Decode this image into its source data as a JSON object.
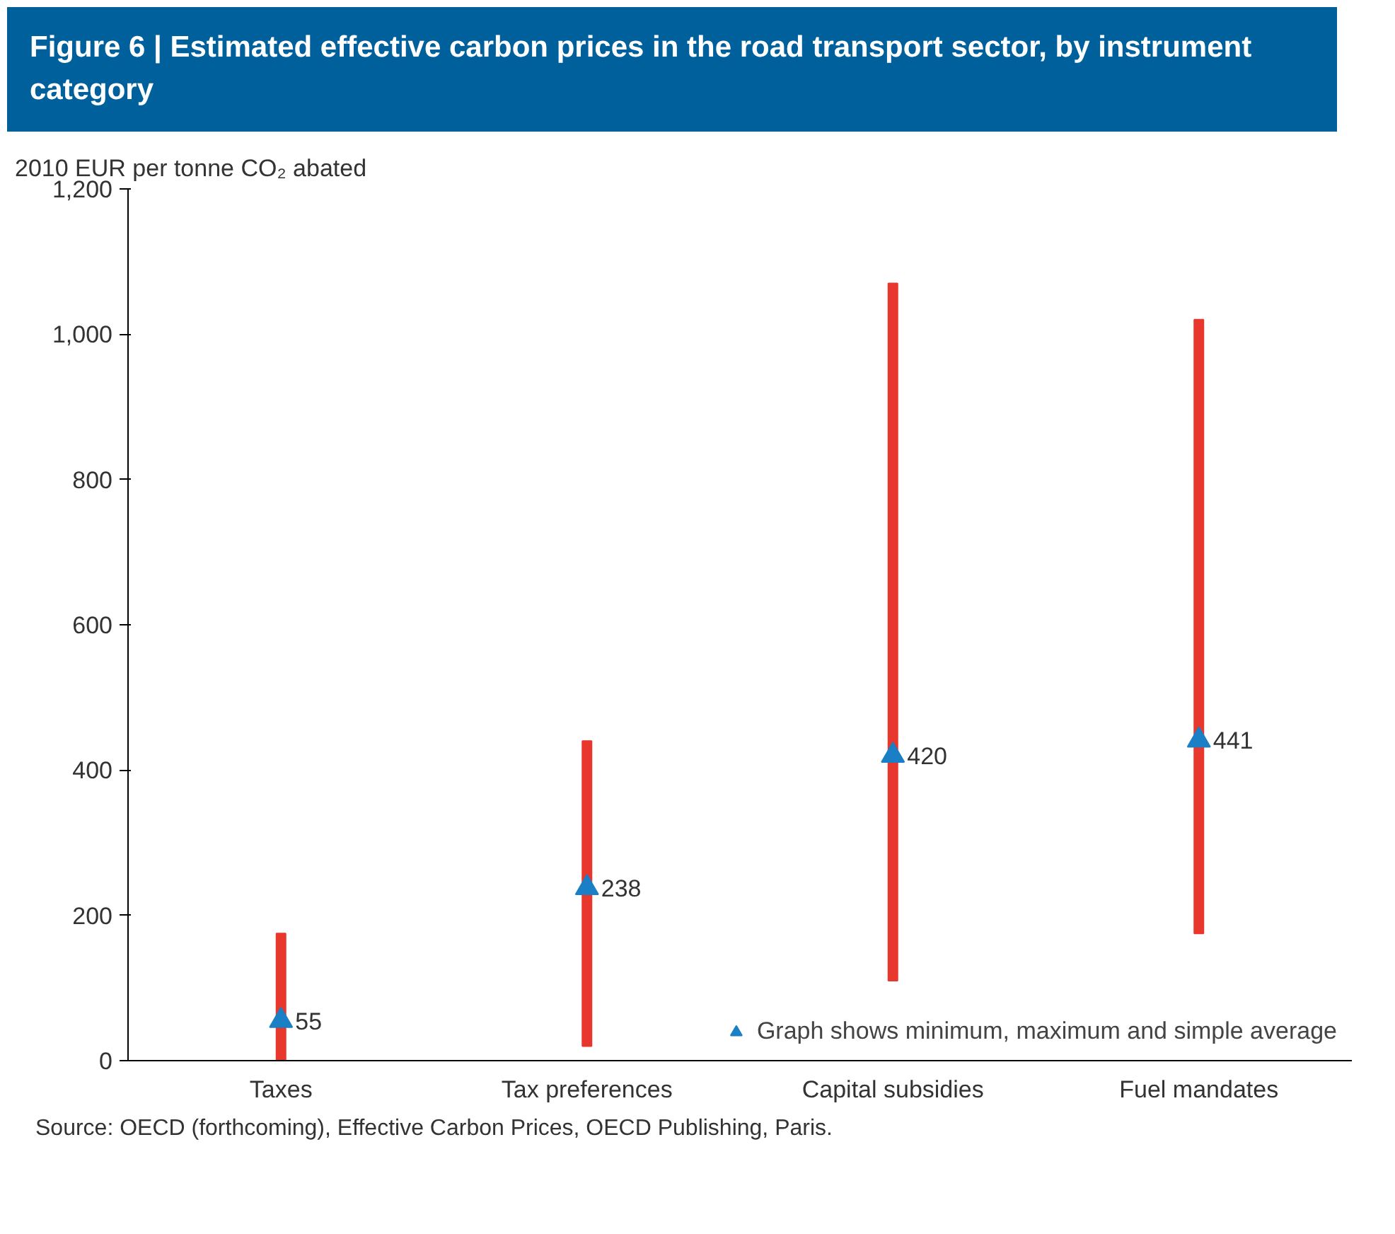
{
  "chart_data": {
    "type": "bar",
    "title": "Figure 6 | Estimated effective carbon prices in the road transport sector, by instrument category",
    "ylabel": "2010 EUR per tonne CO₂ abated",
    "categories": [
      "Taxes",
      "Tax preferences",
      "Capital subsidies",
      "Fuel mandates"
    ],
    "series": [
      {
        "color": "#e8372c",
        "base": [
          0,
          20,
          110,
          175
        ],
        "values": [
          175,
          420,
          960,
          845
        ]
      },
      {
        "type": "scatter",
        "name": "Graph shows minimum, maximum and simple average",
        "color": "#1a7fc4",
        "marker": "triangle",
        "values": [
          55,
          238,
          420,
          441
        ],
        "value_labels": [
          "55",
          "238",
          "420",
          "441"
        ]
      }
    ],
    "ylim": [
      0,
      1200
    ],
    "yticks": [
      0,
      200,
      400,
      600,
      800,
      {
        "value": 1000,
        "label": "1,000"
      },
      {
        "value": 1200,
        "label": "1,200"
      }
    ],
    "legend": "bottom right",
    "annotations": [
      "Source: OECD (forthcoming), Effective Carbon Prices, OECD Publishing, Paris."
    ]
  }
}
